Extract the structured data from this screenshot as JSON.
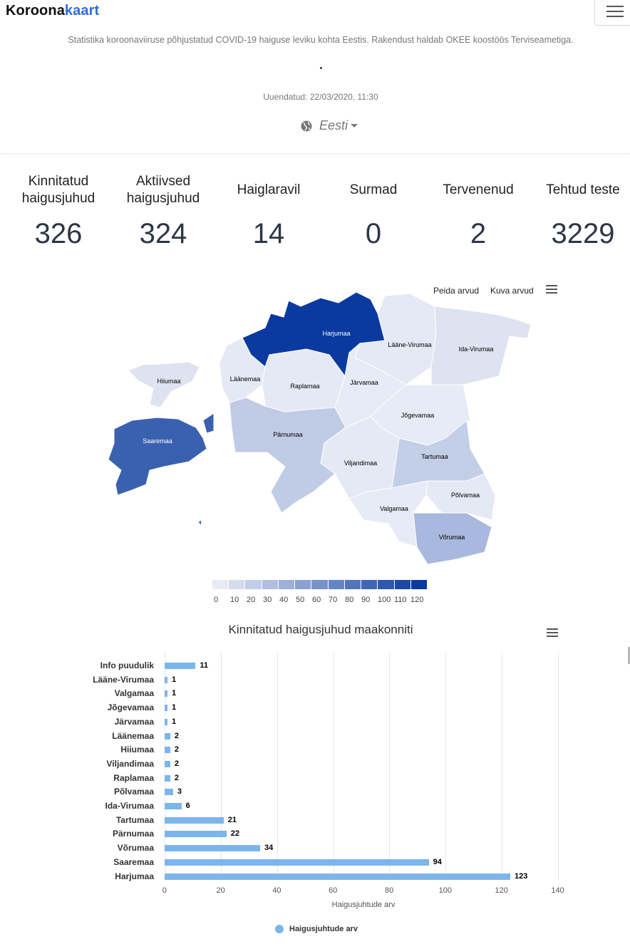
{
  "header": {
    "logo_part1": "Koroona",
    "logo_part2": "kaart",
    "tagline": "Statistika koroonaviiruse põhjustatud COVID-19 haiguse leviku kohta Eestis. Rakendust haldab OKEE koostöös Terviseametiga.",
    "updated": "Uuendatud: 22/03/2020, 11:30",
    "language": "Eesti"
  },
  "stats": [
    {
      "label": "Kinnitatud haigusjuhud",
      "value": "326"
    },
    {
      "label": "Aktiivsed haigusjuhud",
      "value": "324"
    },
    {
      "label": "Haiglaravil",
      "value": "14"
    },
    {
      "label": "Surmad",
      "value": "0"
    },
    {
      "label": "Tervenenud",
      "value": "2"
    },
    {
      "label": "Tehtud teste",
      "value": "3229"
    }
  ],
  "map": {
    "hide_values": "Peida arvud",
    "show_values": "Kuva arvud",
    "regions": {
      "harju": "Harjumaa",
      "laane_viru": "Lääne-Virumaa",
      "ida_viru": "Ida-Virumaa",
      "hiiu": "Hiiumaa",
      "laane": "Läänemaa",
      "rapla": "Raplamaa",
      "jarva": "Järvamaa",
      "jogeva": "Jõgevamaa",
      "saare": "Saaremaa",
      "parnu": "Pärnumaa",
      "tartu": "Tartumaa",
      "viljandi": "Viljandimaa",
      "polva": "Põlvamaa",
      "valga": "Valgamaa",
      "voru": "Võrumaa"
    },
    "legend_ticks": [
      "0",
      "10",
      "20",
      "30",
      "40",
      "50",
      "60",
      "70",
      "80",
      "90",
      "100",
      "110",
      "120"
    ],
    "colors": {
      "low": "#e6ebf5",
      "high": "#0a3aa0"
    }
  },
  "chart_data": {
    "type": "bar",
    "title": "Kinnitatud haigusjuhud maakonniti",
    "xlabel": "Haigusjuhtude arv",
    "categories": [
      "Info puudulik",
      "Lääne-Virumaa",
      "Valgamaa",
      "Jõgevamaa",
      "Järvamaa",
      "Läänemaa",
      "Hiiumaa",
      "Viljandimaa",
      "Raplamaa",
      "Põlvamaa",
      "Ida-Virumaa",
      "Tartumaa",
      "Pärnumaa",
      "Võrumaa",
      "Saaremaa",
      "Harjumaa"
    ],
    "values": [
      11,
      1,
      1,
      1,
      1,
      2,
      2,
      2,
      2,
      3,
      6,
      21,
      22,
      34,
      94,
      123
    ],
    "series": [
      {
        "name": "Haigusjuhtude arv"
      }
    ],
    "xlim": [
      0,
      140
    ],
    "xticks": [
      "0",
      "20",
      "40",
      "60",
      "80",
      "100",
      "120",
      "140"
    ],
    "color": "#7cb5ec"
  }
}
